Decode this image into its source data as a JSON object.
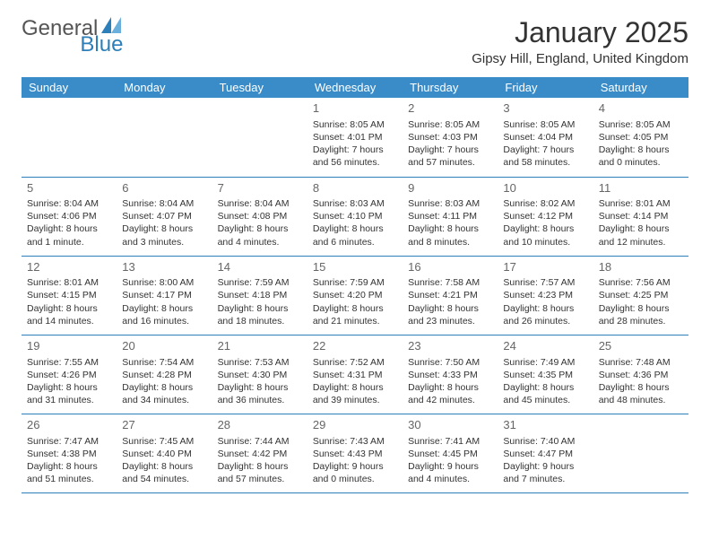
{
  "logo": {
    "text_general": "General",
    "text_blue": "Blue",
    "accent_color": "#2c7fb8"
  },
  "title": "January 2025",
  "location": "Gipsy Hill, England, United Kingdom",
  "header_bg": "#3a8cc9",
  "border_color": "#2c7fb8",
  "days_of_week": [
    "Sunday",
    "Monday",
    "Tuesday",
    "Wednesday",
    "Thursday",
    "Friday",
    "Saturday"
  ],
  "weeks": [
    [
      null,
      null,
      null,
      {
        "num": "1",
        "sunrise": "Sunrise: 8:05 AM",
        "sunset": "Sunset: 4:01 PM",
        "daylight": "Daylight: 7 hours and 56 minutes."
      },
      {
        "num": "2",
        "sunrise": "Sunrise: 8:05 AM",
        "sunset": "Sunset: 4:03 PM",
        "daylight": "Daylight: 7 hours and 57 minutes."
      },
      {
        "num": "3",
        "sunrise": "Sunrise: 8:05 AM",
        "sunset": "Sunset: 4:04 PM",
        "daylight": "Daylight: 7 hours and 58 minutes."
      },
      {
        "num": "4",
        "sunrise": "Sunrise: 8:05 AM",
        "sunset": "Sunset: 4:05 PM",
        "daylight": "Daylight: 8 hours and 0 minutes."
      }
    ],
    [
      {
        "num": "5",
        "sunrise": "Sunrise: 8:04 AM",
        "sunset": "Sunset: 4:06 PM",
        "daylight": "Daylight: 8 hours and 1 minute."
      },
      {
        "num": "6",
        "sunrise": "Sunrise: 8:04 AM",
        "sunset": "Sunset: 4:07 PM",
        "daylight": "Daylight: 8 hours and 3 minutes."
      },
      {
        "num": "7",
        "sunrise": "Sunrise: 8:04 AM",
        "sunset": "Sunset: 4:08 PM",
        "daylight": "Daylight: 8 hours and 4 minutes."
      },
      {
        "num": "8",
        "sunrise": "Sunrise: 8:03 AM",
        "sunset": "Sunset: 4:10 PM",
        "daylight": "Daylight: 8 hours and 6 minutes."
      },
      {
        "num": "9",
        "sunrise": "Sunrise: 8:03 AM",
        "sunset": "Sunset: 4:11 PM",
        "daylight": "Daylight: 8 hours and 8 minutes."
      },
      {
        "num": "10",
        "sunrise": "Sunrise: 8:02 AM",
        "sunset": "Sunset: 4:12 PM",
        "daylight": "Daylight: 8 hours and 10 minutes."
      },
      {
        "num": "11",
        "sunrise": "Sunrise: 8:01 AM",
        "sunset": "Sunset: 4:14 PM",
        "daylight": "Daylight: 8 hours and 12 minutes."
      }
    ],
    [
      {
        "num": "12",
        "sunrise": "Sunrise: 8:01 AM",
        "sunset": "Sunset: 4:15 PM",
        "daylight": "Daylight: 8 hours and 14 minutes."
      },
      {
        "num": "13",
        "sunrise": "Sunrise: 8:00 AM",
        "sunset": "Sunset: 4:17 PM",
        "daylight": "Daylight: 8 hours and 16 minutes."
      },
      {
        "num": "14",
        "sunrise": "Sunrise: 7:59 AM",
        "sunset": "Sunset: 4:18 PM",
        "daylight": "Daylight: 8 hours and 18 minutes."
      },
      {
        "num": "15",
        "sunrise": "Sunrise: 7:59 AM",
        "sunset": "Sunset: 4:20 PM",
        "daylight": "Daylight: 8 hours and 21 minutes."
      },
      {
        "num": "16",
        "sunrise": "Sunrise: 7:58 AM",
        "sunset": "Sunset: 4:21 PM",
        "daylight": "Daylight: 8 hours and 23 minutes."
      },
      {
        "num": "17",
        "sunrise": "Sunrise: 7:57 AM",
        "sunset": "Sunset: 4:23 PM",
        "daylight": "Daylight: 8 hours and 26 minutes."
      },
      {
        "num": "18",
        "sunrise": "Sunrise: 7:56 AM",
        "sunset": "Sunset: 4:25 PM",
        "daylight": "Daylight: 8 hours and 28 minutes."
      }
    ],
    [
      {
        "num": "19",
        "sunrise": "Sunrise: 7:55 AM",
        "sunset": "Sunset: 4:26 PM",
        "daylight": "Daylight: 8 hours and 31 minutes."
      },
      {
        "num": "20",
        "sunrise": "Sunrise: 7:54 AM",
        "sunset": "Sunset: 4:28 PM",
        "daylight": "Daylight: 8 hours and 34 minutes."
      },
      {
        "num": "21",
        "sunrise": "Sunrise: 7:53 AM",
        "sunset": "Sunset: 4:30 PM",
        "daylight": "Daylight: 8 hours and 36 minutes."
      },
      {
        "num": "22",
        "sunrise": "Sunrise: 7:52 AM",
        "sunset": "Sunset: 4:31 PM",
        "daylight": "Daylight: 8 hours and 39 minutes."
      },
      {
        "num": "23",
        "sunrise": "Sunrise: 7:50 AM",
        "sunset": "Sunset: 4:33 PM",
        "daylight": "Daylight: 8 hours and 42 minutes."
      },
      {
        "num": "24",
        "sunrise": "Sunrise: 7:49 AM",
        "sunset": "Sunset: 4:35 PM",
        "daylight": "Daylight: 8 hours and 45 minutes."
      },
      {
        "num": "25",
        "sunrise": "Sunrise: 7:48 AM",
        "sunset": "Sunset: 4:36 PM",
        "daylight": "Daylight: 8 hours and 48 minutes."
      }
    ],
    [
      {
        "num": "26",
        "sunrise": "Sunrise: 7:47 AM",
        "sunset": "Sunset: 4:38 PM",
        "daylight": "Daylight: 8 hours and 51 minutes."
      },
      {
        "num": "27",
        "sunrise": "Sunrise: 7:45 AM",
        "sunset": "Sunset: 4:40 PM",
        "daylight": "Daylight: 8 hours and 54 minutes."
      },
      {
        "num": "28",
        "sunrise": "Sunrise: 7:44 AM",
        "sunset": "Sunset: 4:42 PM",
        "daylight": "Daylight: 8 hours and 57 minutes."
      },
      {
        "num": "29",
        "sunrise": "Sunrise: 7:43 AM",
        "sunset": "Sunset: 4:43 PM",
        "daylight": "Daylight: 9 hours and 0 minutes."
      },
      {
        "num": "30",
        "sunrise": "Sunrise: 7:41 AM",
        "sunset": "Sunset: 4:45 PM",
        "daylight": "Daylight: 9 hours and 4 minutes."
      },
      {
        "num": "31",
        "sunrise": "Sunrise: 7:40 AM",
        "sunset": "Sunset: 4:47 PM",
        "daylight": "Daylight: 9 hours and 7 minutes."
      },
      null
    ]
  ]
}
